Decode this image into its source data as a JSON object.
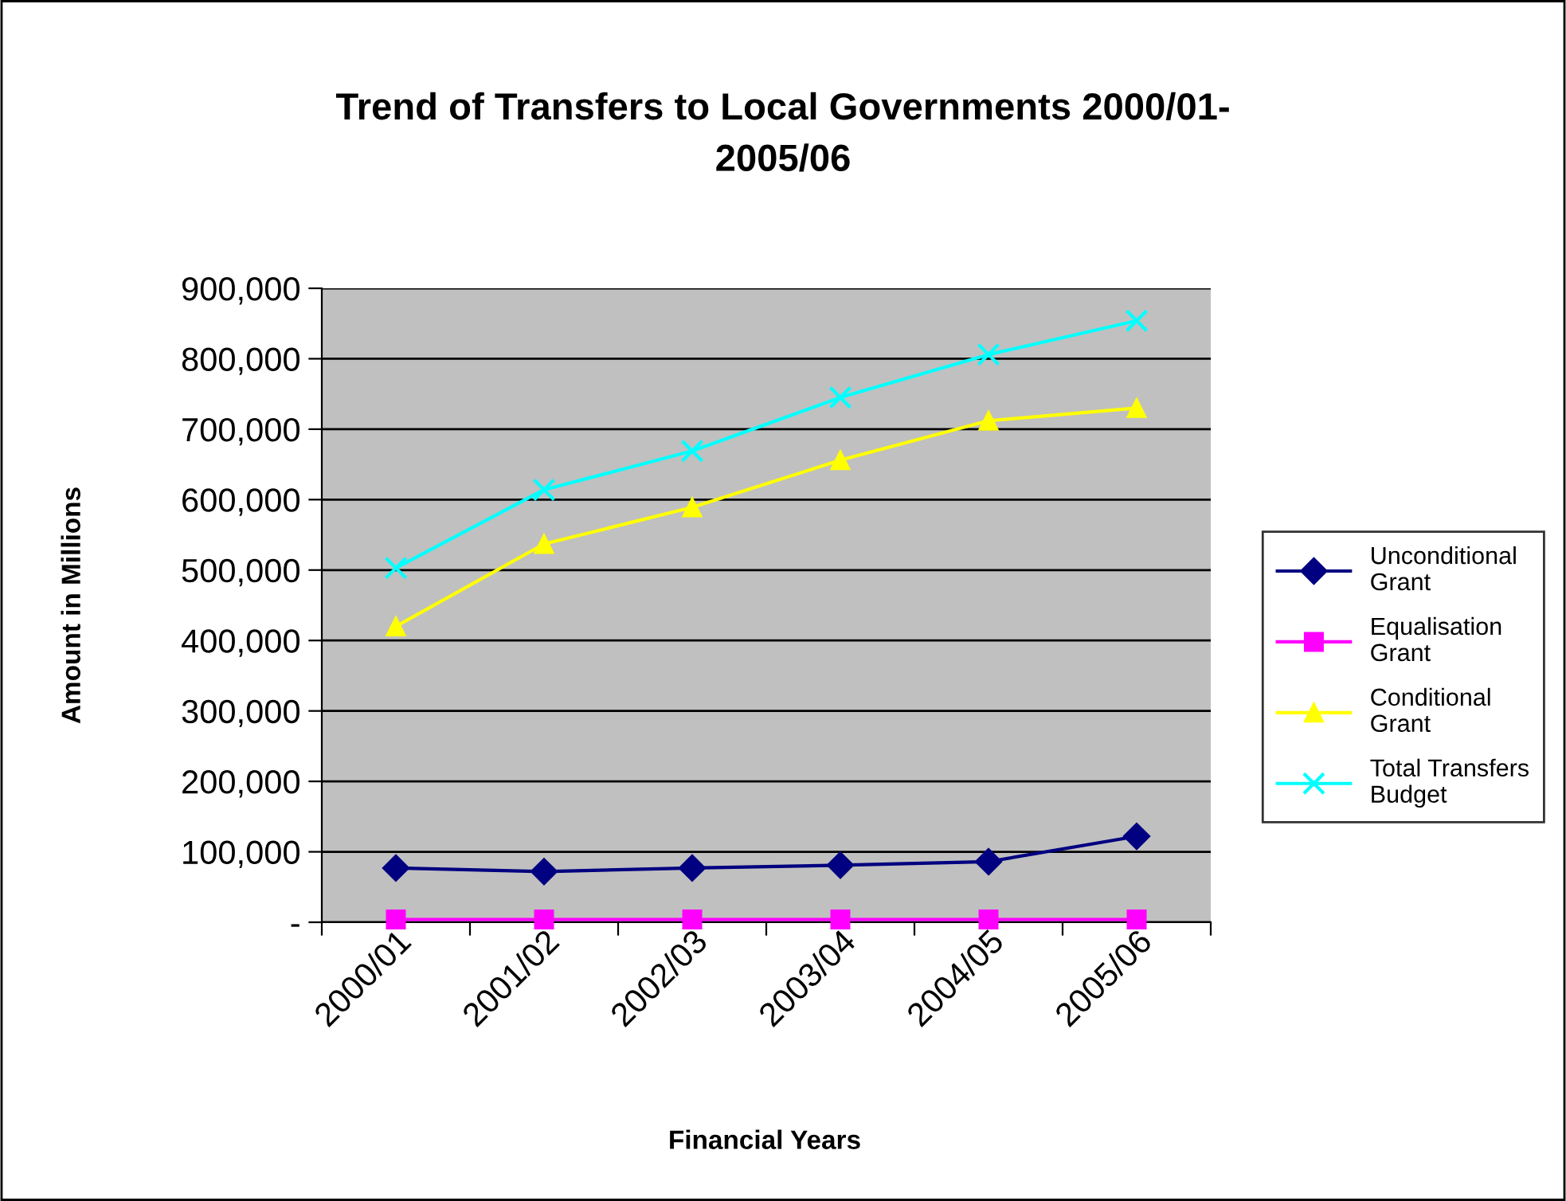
{
  "chart_data": {
    "type": "line",
    "title": "Trend of Transfers to Local Governments 2000/01-2005/06",
    "xlabel": "Financial Years",
    "ylabel": "Amount in Millions",
    "categories": [
      "2000/01",
      "2001/02",
      "2002/03",
      "2003/04",
      "2004/05",
      "2005/06"
    ],
    "series": [
      {
        "name": "Unconditional Grant",
        "color": "#000080",
        "marker": "diamond",
        "values": [
          77000,
          72000,
          77000,
          81000,
          86000,
          122000
        ]
      },
      {
        "name": "Equalisation Grant",
        "color": "#ff00ff",
        "marker": "square",
        "values": [
          4000,
          4000,
          4000,
          4000,
          4000,
          4000
        ]
      },
      {
        "name": "Conditional Grant",
        "color": "#ffff00",
        "marker": "triangle",
        "values": [
          420000,
          537000,
          589000,
          656000,
          712000,
          730000
        ]
      },
      {
        "name": "Total Transfers Budget",
        "color": "#00ffff",
        "marker": "cross",
        "values": [
          503000,
          614000,
          669000,
          745000,
          806000,
          854000
        ]
      }
    ],
    "ylim": [
      0,
      900000
    ],
    "yticks": [
      {
        "value": 0,
        "label": "-"
      },
      {
        "value": 100000,
        "label": "100,000"
      },
      {
        "value": 200000,
        "label": "200,000"
      },
      {
        "value": 300000,
        "label": "300,000"
      },
      {
        "value": 400000,
        "label": "400,000"
      },
      {
        "value": 500000,
        "label": "500,000"
      },
      {
        "value": 600000,
        "label": "600,000"
      },
      {
        "value": 700000,
        "label": "700,000"
      },
      {
        "value": 800000,
        "label": "800,000"
      },
      {
        "value": 900000,
        "label": "900,000"
      }
    ],
    "grid": "y",
    "legend": "right",
    "line_style": "solid"
  }
}
